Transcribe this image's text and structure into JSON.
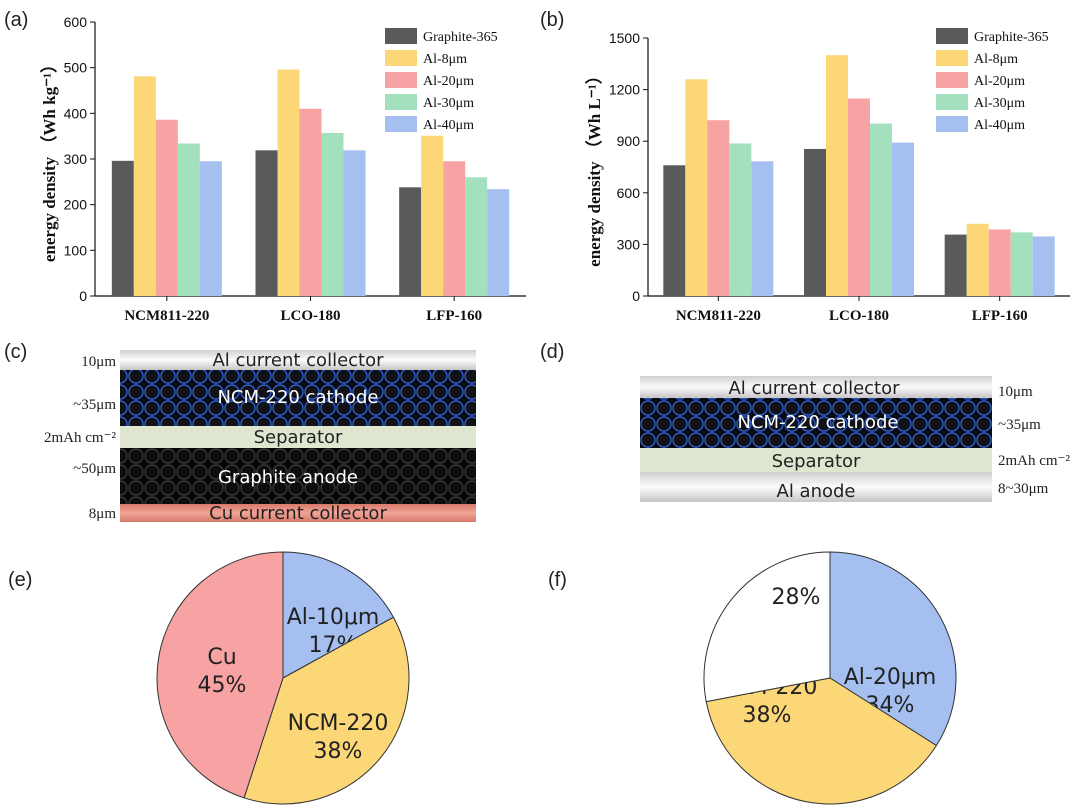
{
  "panels": {
    "a": "(a)",
    "b": "(b)",
    "c": "(c)",
    "d": "(d)",
    "e": "(e)",
    "f": "(f)"
  },
  "colors": {
    "Graphite-365": "#5a5a5a",
    "Al-8μm": "#fcd778",
    "Al-20μm": "#f7a3a3",
    "Al-30μm": "#a3e0bd",
    "Al-40μm": "#a4bff0",
    "Cu": "#f7a3a3",
    "Al-10μm": "#a4bff0",
    "NCM-220": "#fcd778",
    "blank": "#ffffff"
  },
  "chart_data": [
    {
      "type": "bar",
      "panel": "(a)",
      "ylabel": "energy density （Wh kg⁻¹）",
      "ylim": [
        0,
        600
      ],
      "yticks": [
        0,
        100,
        200,
        300,
        400,
        500,
        600
      ],
      "categories": [
        "NCM811-220",
        "LCO-180",
        "LFP-160"
      ],
      "series": [
        {
          "name": "Graphite-365",
          "values": [
            296,
            319,
            238
          ]
        },
        {
          "name": "Al-8μm",
          "values": [
            481,
            496,
            351
          ]
        },
        {
          "name": "Al-20μm",
          "values": [
            386,
            410,
            295
          ]
        },
        {
          "name": "Al-30μm",
          "values": [
            334,
            357,
            260
          ]
        },
        {
          "name": "Al-40μm",
          "values": [
            295,
            319,
            234
          ]
        }
      ],
      "legend": "top-right"
    },
    {
      "type": "bar",
      "panel": "(b)",
      "ylabel": "energy density （Wh L⁻¹）",
      "ylim": [
        0,
        1500
      ],
      "yticks": [
        0,
        300,
        600,
        900,
        1200,
        1500
      ],
      "categories": [
        "NCM811-220",
        "LCO-180",
        "LFP-160"
      ],
      "series": [
        {
          "name": "Graphite-365",
          "values": [
            760,
            855,
            357
          ]
        },
        {
          "name": "Al-8μm",
          "values": [
            1260,
            1400,
            420
          ]
        },
        {
          "name": "Al-20μm",
          "values": [
            1022,
            1148,
            387
          ]
        },
        {
          "name": "Al-30μm",
          "values": [
            887,
            1003,
            370
          ]
        },
        {
          "name": "Al-40μm",
          "values": [
            783,
            892,
            346
          ]
        }
      ],
      "legend": "top-right"
    },
    {
      "type": "pie",
      "panel": "(e)",
      "slices": [
        {
          "name": "Al-10μm",
          "value": 17,
          "label": "17%",
          "color_key": "Al-10μm"
        },
        {
          "name": "NCM-220",
          "value": 38,
          "label": "38%",
          "color_key": "NCM-220"
        },
        {
          "name": "Cu",
          "value": 45,
          "label": "45%",
          "color_key": "Cu"
        }
      ]
    },
    {
      "type": "pie",
      "panel": "(f)",
      "slices": [
        {
          "name": "Al-20μm",
          "value": 34,
          "label": "34%",
          "color_key": "Al-20μm-pie"
        },
        {
          "name": "NCM-220",
          "value": 38,
          "label": "38%",
          "color_key": "NCM-220"
        },
        {
          "name": "",
          "value": 28,
          "label": "28%",
          "color_key": "blank"
        }
      ]
    }
  ],
  "diagram_c": {
    "layers": [
      {
        "name": "Al current collector",
        "side": "10μm"
      },
      {
        "name": "NCM-220 cathode",
        "side": "~35μm"
      },
      {
        "name": "Separator",
        "side": "2mAh cm⁻²"
      },
      {
        "name": "Graphite anode",
        "side": "~50μm"
      },
      {
        "name": "Cu current collector",
        "side": "8μm"
      }
    ]
  },
  "diagram_d": {
    "layers": [
      {
        "name": "Al current collector",
        "side": "10μm"
      },
      {
        "name": "NCM-220 cathode",
        "side": "~35μm"
      },
      {
        "name": "Separator",
        "side": "2mAh cm⁻²"
      },
      {
        "name": "Al anode",
        "side": "8~30μm"
      }
    ]
  }
}
